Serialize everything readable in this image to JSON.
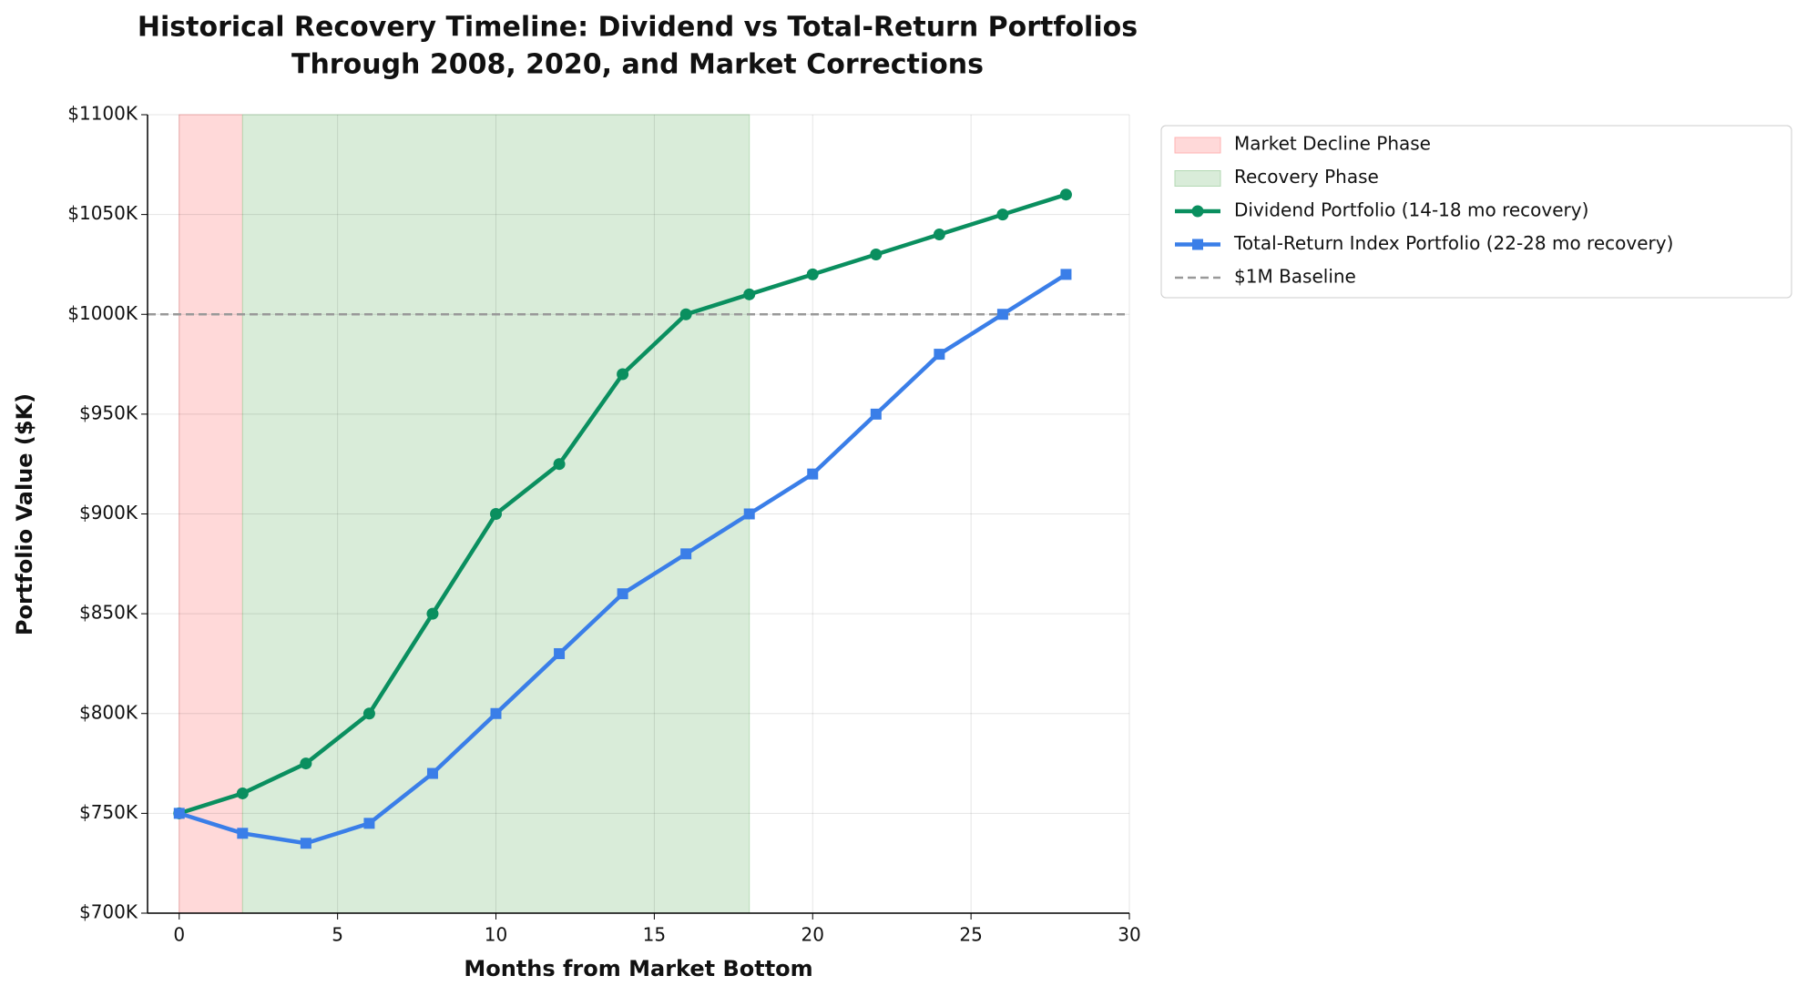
{
  "chart_data": {
    "type": "line",
    "title": [
      "Historical Recovery Timeline: Dividend vs Total-Return Portfolios",
      "Through 2008, 2020, and Market Corrections"
    ],
    "x_label": "Months from Market Bottom",
    "y_label": "Portfolio Value ($K)",
    "x": [
      0,
      2,
      4,
      6,
      8,
      10,
      12,
      14,
      16,
      18,
      20,
      22,
      24,
      26,
      28
    ],
    "series": [
      {
        "name": "Dividend Portfolio (14-18 mo recovery)",
        "color": "#0a8f5f",
        "marker": "circle",
        "values": [
          750,
          760,
          775,
          800,
          850,
          900,
          925,
          970,
          1000,
          1010,
          1020,
          1030,
          1040,
          1050,
          1060
        ]
      },
      {
        "name": "Total-Return Index Portfolio (22-28 mo recovery)",
        "color": "#3a7ee8",
        "marker": "square",
        "values": [
          750,
          740,
          735,
          745,
          770,
          800,
          830,
          860,
          880,
          900,
          920,
          950,
          980,
          1000,
          1020
        ]
      }
    ],
    "spans": [
      {
        "name": "Market Decline Phase",
        "start": 0,
        "end": 2,
        "color": "#ffb3b3"
      },
      {
        "name": "Recovery Phase",
        "start": 2,
        "end": 18,
        "color": "#b3d9b3"
      }
    ],
    "baseline": {
      "name": "$1M Baseline",
      "value": 1000,
      "color": "#999999"
    },
    "xlim": [
      -1,
      30
    ],
    "xticks": [
      0,
      5,
      10,
      15,
      20,
      25,
      30
    ],
    "ylim": [
      700,
      1100
    ],
    "yticks": [
      {
        "value": 700,
        "label": "$700K"
      },
      {
        "value": 750,
        "label": "$750K"
      },
      {
        "value": 800,
        "label": "$800K"
      },
      {
        "value": 850,
        "label": "$850K"
      },
      {
        "value": 900,
        "label": "$900K"
      },
      {
        "value": 950,
        "label": "$950K"
      },
      {
        "value": 1000,
        "label": "$1000K"
      },
      {
        "value": 1050,
        "label": "$1050K"
      },
      {
        "value": 1100,
        "label": "$1100K"
      }
    ],
    "grid": true,
    "legend": "outside-upper-right"
  }
}
